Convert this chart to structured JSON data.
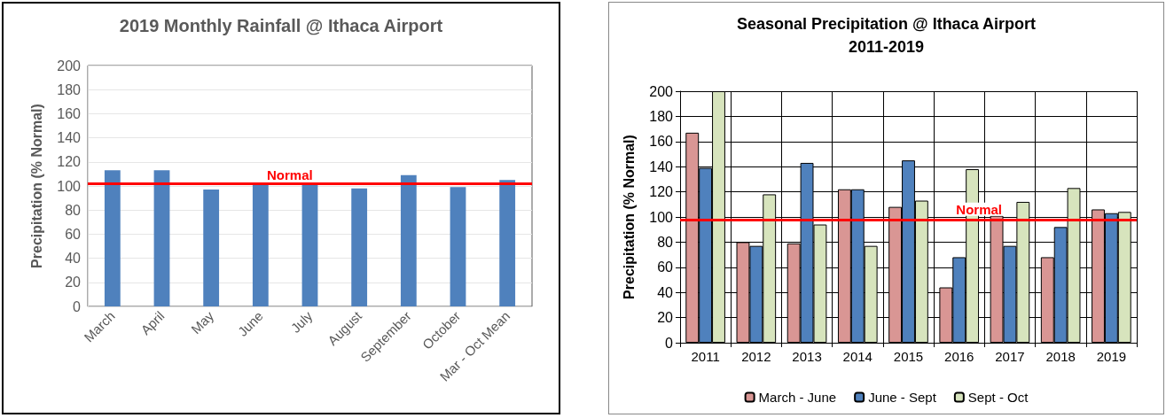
{
  "chart_data": [
    {
      "type": "bar",
      "title": "2019 Monthly Rainfall @ Ithaca Airport",
      "ylabel": "Precipitation (% Normal)",
      "categories": [
        "March",
        "April",
        "May",
        "June",
        "July",
        "August",
        "September",
        "October",
        "Mar - Oct Mean"
      ],
      "values": [
        113,
        113,
        97,
        102,
        102,
        98,
        109,
        99,
        105
      ],
      "color": "#4f81bd",
      "ylim": [
        0,
        200
      ],
      "yticks": [
        0,
        20,
        40,
        60,
        80,
        100,
        120,
        140,
        160,
        180,
        200
      ],
      "grid": "y",
      "ref_lines": [
        {
          "axis": "y",
          "value": 102,
          "label": "Normal",
          "color": "#ff0000"
        }
      ]
    },
    {
      "type": "bar",
      "title": "Seasonal Precipitation @ Ithaca Airport",
      "subtitle": "2011-2019",
      "ylabel": "Precipitation (% Normal)",
      "categories": [
        "2011",
        "2012",
        "2013",
        "2014",
        "2015",
        "2016",
        "2017",
        "2018",
        "2019"
      ],
      "series": [
        {
          "name": "March - June",
          "color": "#d99694",
          "values": [
            167,
            80,
            79,
            122,
            108,
            44,
            101,
            68,
            106
          ]
        },
        {
          "name": "June - Sept",
          "color": "#4f81bd",
          "values": [
            139,
            77,
            143,
            122,
            145,
            68,
            77,
            92,
            103
          ]
        },
        {
          "name": "Sept - Oct",
          "color": "#d7e4bd",
          "values": [
            200,
            118,
            94,
            77,
            113,
            138,
            112,
            123,
            104
          ]
        }
      ],
      "ylim": [
        0,
        200
      ],
      "yticks": [
        0,
        20,
        40,
        60,
        80,
        100,
        120,
        140,
        160,
        180,
        200
      ],
      "grid": true,
      "legend": "bottom",
      "ref_lines": [
        {
          "axis": "y",
          "value": 98,
          "label": "Normal",
          "color": "#ff0000"
        }
      ]
    }
  ]
}
